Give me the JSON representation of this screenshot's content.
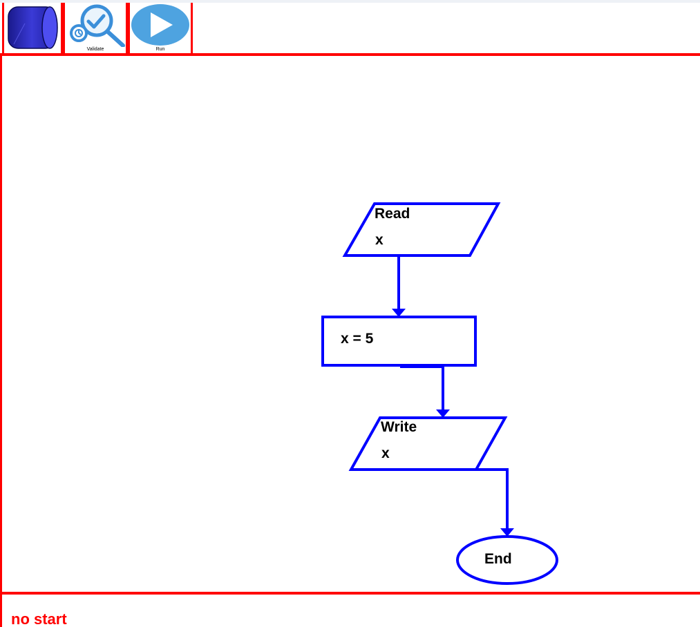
{
  "toolbar": {
    "items": [
      {
        "icon": "cylinder-icon",
        "label": ""
      },
      {
        "icon": "validate-icon",
        "label": "Validate"
      },
      {
        "icon": "run-icon",
        "label": "Run"
      }
    ]
  },
  "flowchart": {
    "read": {
      "keyword": "Read",
      "variable": "x"
    },
    "assign": {
      "text": "x = 5"
    },
    "write": {
      "keyword": "Write",
      "variable": "x"
    },
    "end": {
      "text": "End"
    }
  },
  "status": {
    "message": "no start"
  },
  "colors": {
    "border": "#ff0000",
    "shape": "#0000ff",
    "status_text": "#ff0000",
    "icon_blue": "#3b8fd9"
  }
}
